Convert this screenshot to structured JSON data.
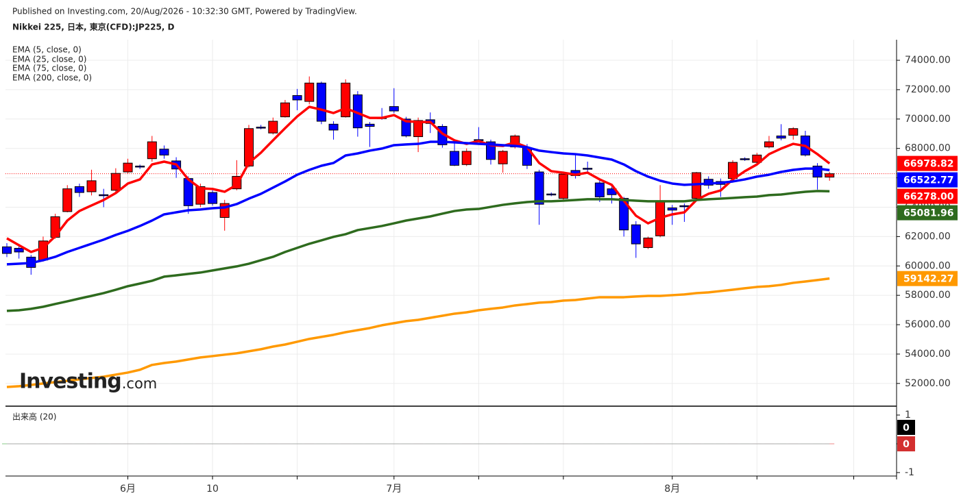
{
  "chart_data": {
    "type": "candlestick",
    "published": "Published on Investing.com, 20/Aug/2026 - 10:32:30 GMT, Powered by TradingView.",
    "title": "Nikkei 225, 日本, 東京(CFD):JP225, D",
    "logo": {
      "brand": "Investing",
      "suffix": ".com"
    },
    "up_color": "#ff0000",
    "down_color": "#0000ff",
    "categories": [
      null,
      null,
      null,
      null,
      null,
      null,
      null,
      null,
      null,
      null,
      "6月",
      null,
      null,
      null,
      null,
      null,
      null,
      "10",
      null,
      null,
      null,
      null,
      null,
      null,
      null,
      null,
      null,
      null,
      null,
      null,
      null,
      null,
      "7月",
      null,
      null,
      null,
      null,
      null,
      null,
      null,
      null,
      null,
      null,
      null,
      null,
      null,
      null,
      null,
      null,
      null,
      null,
      null,
      null,
      null,
      null,
      "8月",
      null,
      null,
      null,
      null,
      null,
      null,
      null,
      null,
      null,
      null,
      null,
      null,
      null
    ],
    "open": [
      61300,
      61200,
      60600,
      60400,
      61950,
      63700,
      65400,
      65050,
      64850,
      65150,
      66400,
      66800,
      67300,
      67950,
      67150,
      65950,
      64200,
      65000,
      63300,
      65250,
      66800,
      69450,
      69050,
      70150,
      71600,
      71200,
      72450,
      69650,
      70150,
      71650,
      69650,
      70100,
      70850,
      70000,
      68800,
      69950,
      69500,
      67800,
      66900,
      68600,
      68450,
      66950,
      68100,
      68050,
      66400,
      64900,
      64600,
      66500,
      66650,
      65650,
      65250,
      64600,
      62800,
      61250,
      62050,
      63950,
      64100,
      64600,
      65900,
      65750,
      65950,
      67300,
      67050,
      68100,
      68850,
      68900,
      68850,
      66800,
      66050
    ],
    "high": [
      61550,
      61500,
      60750,
      62000,
      63550,
      65500,
      65600,
      66550,
      65250,
      66650,
      67300,
      66900,
      68850,
      68200,
      67400,
      66100,
      65600,
      65150,
      64500,
      67200,
      69600,
      69600,
      70100,
      71300,
      72050,
      72900,
      72550,
      69850,
      72700,
      71900,
      69800,
      70750,
      72100,
      70150,
      70100,
      70450,
      69650,
      68450,
      68000,
      69450,
      68600,
      67900,
      68950,
      68300,
      66550,
      65000,
      66350,
      67600,
      67100,
      65850,
      65400,
      64700,
      63050,
      62000,
      65500,
      64150,
      64250,
      66400,
      66100,
      65950,
      67200,
      67400,
      67700,
      68850,
      69650,
      69450,
      69200,
      67000,
      66400
    ],
    "low": [
      60600,
      60500,
      59400,
      60300,
      61850,
      63650,
      64700,
      64800,
      64000,
      65050,
      66300,
      66600,
      67100,
      67300,
      66000,
      63550,
      64000,
      64100,
      62400,
      65150,
      66700,
      69300,
      68950,
      70100,
      70600,
      71000,
      69650,
      68600,
      70100,
      68800,
      68100,
      69950,
      70400,
      68750,
      67750,
      69050,
      68050,
      66800,
      66800,
      68500,
      66900,
      66350,
      68000,
      66600,
      62800,
      64750,
      64400,
      65950,
      66350,
      64350,
      64250,
      62000,
      60550,
      61150,
      61950,
      62800,
      63000,
      64500,
      65250,
      64700,
      65900,
      67150,
      66950,
      68000,
      68550,
      68600,
      67450,
      65200,
      65800
    ],
    "close": [
      60850,
      60950,
      59900,
      61700,
      63350,
      65250,
      65000,
      65800,
      64800,
      66300,
      67000,
      66750,
      68450,
      67550,
      66600,
      64100,
      65400,
      64250,
      64250,
      66100,
      69350,
      69400,
      69850,
      71100,
      71300,
      72450,
      69850,
      69250,
      72450,
      69400,
      69500,
      70050,
      70550,
      68850,
      69900,
      69700,
      68250,
      66850,
      67800,
      68550,
      67250,
      67800,
      68850,
      66850,
      64200,
      64850,
      66250,
      66150,
      66600,
      64700,
      64850,
      62450,
      61500,
      61900,
      64400,
      63800,
      64050,
      66350,
      65500,
      65550,
      67050,
      67250,
      67550,
      68450,
      68700,
      69350,
      67550,
      66050,
      66278
    ],
    "close_label": "66278.00",
    "series": [
      {
        "name": "EMA (5, close, 0)",
        "color": "#ff0000",
        "values": [
          61880,
          61410,
          60950,
          61230,
          62020,
          63090,
          63740,
          64120,
          64490,
          64960,
          65610,
          65890,
          66910,
          67100,
          66910,
          65890,
          65280,
          65240,
          65050,
          65520,
          67010,
          67710,
          68550,
          69380,
          70180,
          70830,
          70640,
          70410,
          70740,
          70410,
          70080,
          70080,
          70270,
          69850,
          69800,
          69800,
          69010,
          68550,
          68310,
          68500,
          68220,
          68170,
          68410,
          68080,
          67010,
          66450,
          66350,
          66210,
          66350,
          65890,
          65520,
          64440,
          63420,
          62900,
          63280,
          63510,
          63650,
          64490,
          64910,
          65140,
          65890,
          66450,
          66910,
          67610,
          67990,
          68310,
          68170,
          67610,
          66978.82
        ]
      },
      {
        "name": "EMA (25, close, 0)",
        "color": "#0000ff",
        "values": [
          60110,
          60150,
          60200,
          60390,
          60620,
          60950,
          61230,
          61510,
          61790,
          62110,
          62390,
          62720,
          63090,
          63510,
          63650,
          63790,
          63840,
          63930,
          63980,
          64210,
          64580,
          64910,
          65330,
          65750,
          66210,
          66540,
          66820,
          67010,
          67520,
          67660,
          67850,
          67990,
          68220,
          68270,
          68310,
          68450,
          68450,
          68410,
          68360,
          68310,
          68270,
          68220,
          68170,
          68080,
          67850,
          67750,
          67660,
          67610,
          67520,
          67380,
          67240,
          66910,
          66450,
          66080,
          65800,
          65610,
          65520,
          65560,
          65610,
          65660,
          65750,
          65890,
          66080,
          66210,
          66400,
          66540,
          66630,
          66630,
          66522.77
        ]
      },
      {
        "name": "EMA (75, close, 0)",
        "color": "#2e6b1e",
        "values": [
          56940,
          56980,
          57080,
          57220,
          57410,
          57590,
          57780,
          57960,
          58150,
          58380,
          58620,
          58800,
          58990,
          59270,
          59360,
          59460,
          59550,
          59690,
          59830,
          59970,
          60150,
          60390,
          60620,
          60950,
          61230,
          61510,
          61740,
          61980,
          62160,
          62440,
          62580,
          62720,
          62900,
          63090,
          63230,
          63370,
          63560,
          63740,
          63840,
          63880,
          64020,
          64160,
          64260,
          64350,
          64400,
          64400,
          64440,
          64490,
          64540,
          64540,
          64540,
          64490,
          64440,
          64400,
          64400,
          64400,
          64400,
          64490,
          64540,
          64580,
          64630,
          64680,
          64720,
          64820,
          64860,
          64960,
          65050,
          65100,
          65081.96
        ]
      },
      {
        "name": "EMA (200, close, 0)",
        "color": "#ff9900",
        "values": [
          51760,
          51810,
          51900,
          52000,
          52090,
          52180,
          52280,
          52370,
          52460,
          52600,
          52740,
          52930,
          53260,
          53390,
          53490,
          53630,
          53770,
          53860,
          53960,
          54050,
          54190,
          54330,
          54510,
          54650,
          54840,
          55030,
          55170,
          55310,
          55490,
          55630,
          55770,
          55960,
          56100,
          56240,
          56330,
          56470,
          56610,
          56750,
          56840,
          56980,
          57080,
          57170,
          57310,
          57400,
          57500,
          57540,
          57640,
          57680,
          57780,
          57870,
          57870,
          57870,
          57920,
          57960,
          57960,
          58010,
          58060,
          58150,
          58200,
          58290,
          58380,
          58480,
          58570,
          58620,
          58710,
          58850,
          58940,
          59040,
          59142.27
        ]
      }
    ],
    "ylim": [
      50500,
      75400
    ],
    "yticks": [
      {
        "value": 52000,
        "label": "52000.00"
      },
      {
        "value": 54000,
        "label": "54000.00"
      },
      {
        "value": 56000,
        "label": "56000.00"
      },
      {
        "value": 58000,
        "label": "58000.00"
      },
      {
        "value": 60000,
        "label": "60000.00"
      },
      {
        "value": 62000,
        "label": "62000.00"
      },
      {
        "value": 64000,
        "label": "64000.00"
      },
      {
        "value": 66000,
        "label": "66000.00"
      },
      {
        "value": 68000,
        "label": "68000.00"
      },
      {
        "value": 70000,
        "label": "70000.00"
      },
      {
        "value": 72000,
        "label": "72000.00"
      },
      {
        "value": 74000,
        "label": "74000.00"
      }
    ],
    "grid": true,
    "volume": {
      "label": "出来高 (20)",
      "values": [
        0,
        0,
        0,
        0,
        0,
        0,
        0,
        0,
        0,
        0,
        0,
        0,
        0,
        0,
        0,
        0,
        0,
        0,
        0,
        0,
        0,
        0,
        0,
        0,
        0,
        0,
        0,
        0,
        0,
        0,
        0,
        0,
        0,
        0,
        0,
        0,
        0,
        0,
        0,
        0,
        0,
        0,
        0,
        0,
        0,
        0,
        0,
        0,
        0,
        0,
        0,
        0,
        0,
        0,
        0,
        0,
        0,
        0,
        0,
        0,
        0,
        0,
        0,
        0,
        0,
        0,
        0,
        0,
        0
      ],
      "ma": [
        0,
        0,
        0,
        0,
        0,
        0,
        0,
        0,
        0,
        0,
        0,
        0,
        0,
        0,
        0,
        0,
        0,
        0,
        0,
        0,
        0,
        0,
        0,
        0,
        0,
        0,
        0,
        0,
        0,
        0,
        0,
        0,
        0,
        0,
        0,
        0,
        0,
        0,
        0,
        0,
        0,
        0,
        0,
        0,
        0,
        0,
        0,
        0,
        0,
        0,
        0,
        0,
        0,
        0,
        0,
        0,
        0,
        0,
        0,
        0,
        0,
        0,
        0,
        0,
        0,
        0,
        0,
        0,
        0
      ],
      "ma_color": "#000000",
      "ylim": [
        -1.12,
        1.19
      ],
      "yticks": [
        1,
        0,
        -1
      ]
    }
  }
}
